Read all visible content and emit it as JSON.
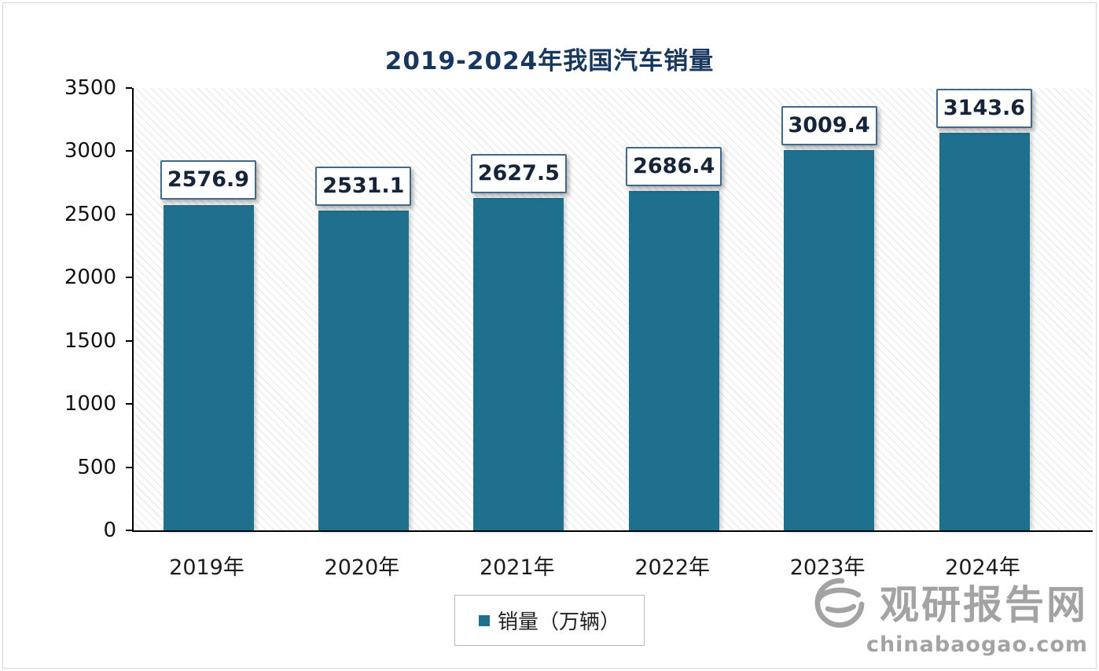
{
  "chart_data": {
    "type": "bar",
    "title": "2019-2024年我国汽车销量",
    "categories": [
      "2019年",
      "2020年",
      "2021年",
      "2022年",
      "2023年",
      "2024年"
    ],
    "values": [
      2576.9,
      2531.1,
      2627.5,
      2686.4,
      3009.4,
      3143.6
    ],
    "value_labels": [
      "2576.9",
      "2531.1",
      "2627.5",
      "2686.4",
      "3009.4",
      "3143.6"
    ],
    "xlabel": "",
    "ylabel": "",
    "ylim": [
      0,
      3500
    ],
    "yticks": [
      0,
      500,
      1000,
      1500,
      2000,
      2500,
      3000,
      3500
    ],
    "grid": false,
    "legend_position": "bottom-center",
    "legend": [
      {
        "label": "销量（万辆）",
        "color": "#1f6f8e"
      }
    ],
    "colors": {
      "bar": "#1f6f8e",
      "title": "#17375e",
      "label_box_border": "#44688a",
      "label_text": "#16243a"
    }
  },
  "watermark": {
    "site_name": "观研报告网",
    "site_url": "chinabaogao.com",
    "logo": "swirl-logo",
    "color": "#a3a3a3"
  }
}
